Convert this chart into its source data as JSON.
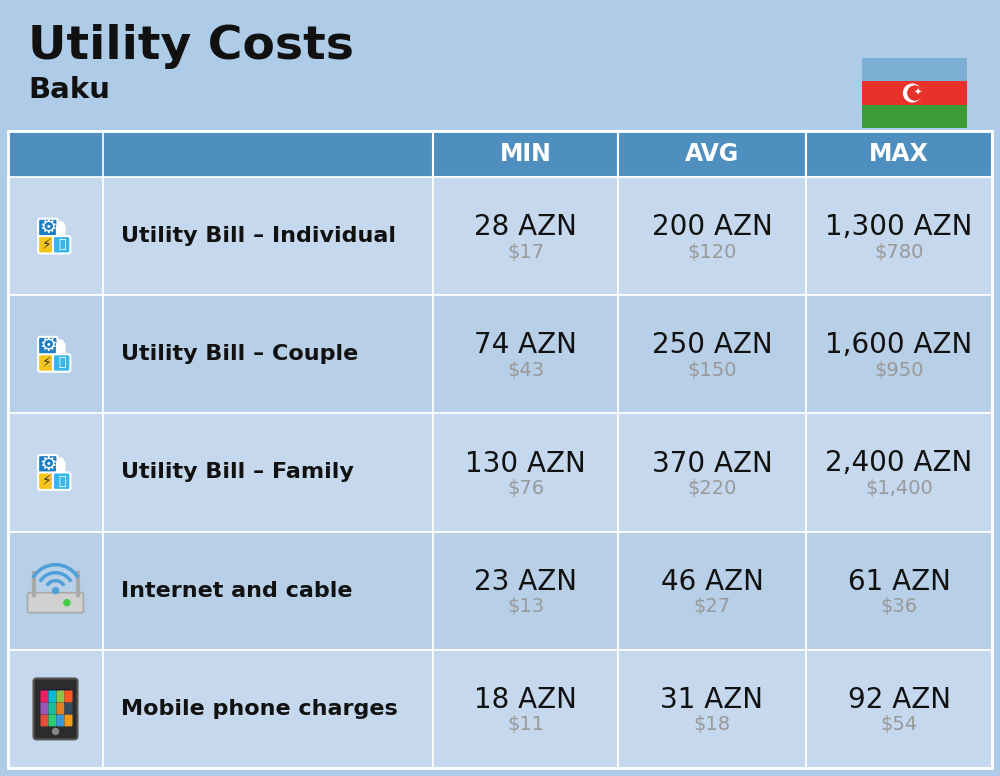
{
  "title": "Utility Costs",
  "subtitle": "Baku",
  "background_color": "#aecce8",
  "header_color": "#4f8fc0",
  "row_color_light": "#c5d8ed",
  "row_color_medium": "#b8cfe8",
  "header_text_color": "#ffffff",
  "label_text_color": "#111111",
  "value_text_color": "#111111",
  "sub_value_text_color": "#999999",
  "columns": [
    "MIN",
    "AVG",
    "MAX"
  ],
  "rows": [
    {
      "label": "Utility Bill – Individual",
      "icon": "utility",
      "min_azn": "28 AZN",
      "min_usd": "$17",
      "avg_azn": "200 AZN",
      "avg_usd": "$120",
      "max_azn": "1,300 AZN",
      "max_usd": "$780"
    },
    {
      "label": "Utility Bill – Couple",
      "icon": "utility",
      "min_azn": "74 AZN",
      "min_usd": "$43",
      "avg_azn": "250 AZN",
      "avg_usd": "$150",
      "max_azn": "1,600 AZN",
      "max_usd": "$950"
    },
    {
      "label": "Utility Bill – Family",
      "icon": "utility",
      "min_azn": "130 AZN",
      "min_usd": "$76",
      "avg_azn": "370 AZN",
      "avg_usd": "$220",
      "max_azn": "2,400 AZN",
      "max_usd": "$1,400"
    },
    {
      "label": "Internet and cable",
      "icon": "internet",
      "min_azn": "23 AZN",
      "min_usd": "$13",
      "avg_azn": "46 AZN",
      "avg_usd": "$27",
      "max_azn": "61 AZN",
      "max_usd": "$36"
    },
    {
      "label": "Mobile phone charges",
      "icon": "mobile",
      "min_azn": "18 AZN",
      "min_usd": "$11",
      "avg_azn": "31 AZN",
      "avg_usd": "$18",
      "max_azn": "92 AZN",
      "max_usd": "$54"
    }
  ],
  "flag_blue": "#7bafd4",
  "flag_red": "#e8312a",
  "flag_green": "#3d9b35",
  "title_fontsize": 34,
  "subtitle_fontsize": 21,
  "header_fontsize": 17,
  "label_fontsize": 16,
  "value_fontsize": 20,
  "sub_value_fontsize": 14
}
